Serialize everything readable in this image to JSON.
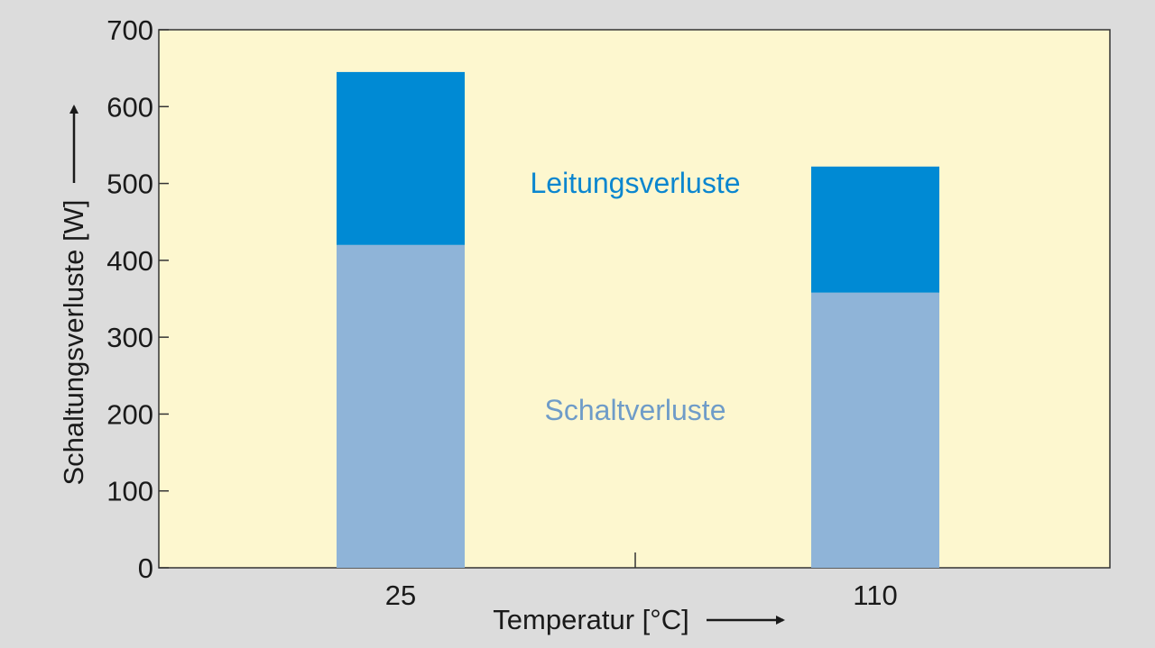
{
  "chart_data": {
    "type": "bar",
    "stacked": true,
    "categories": [
      "25",
      "110"
    ],
    "series": [
      {
        "name": "Schaltverluste",
        "values": [
          420,
          358
        ],
        "color": "#8fb4d8"
      },
      {
        "name": "Leitungsverluste",
        "values": [
          225,
          164
        ],
        "color": "#008ad4"
      }
    ],
    "xlabel": "Temperatur [°C]",
    "ylabel": "Schaltungsverluste [W]",
    "ylim": [
      0,
      700
    ],
    "yticks": [
      0,
      100,
      200,
      300,
      400,
      500,
      600,
      700
    ],
    "grid": false,
    "legend": "inline labels in plot center",
    "colors": {
      "plot_background": "#fdf7cf",
      "page_background": "#dcdcdc",
      "schalt_label": "#6f9cc8",
      "leitung_label": "#0b86cf"
    }
  }
}
